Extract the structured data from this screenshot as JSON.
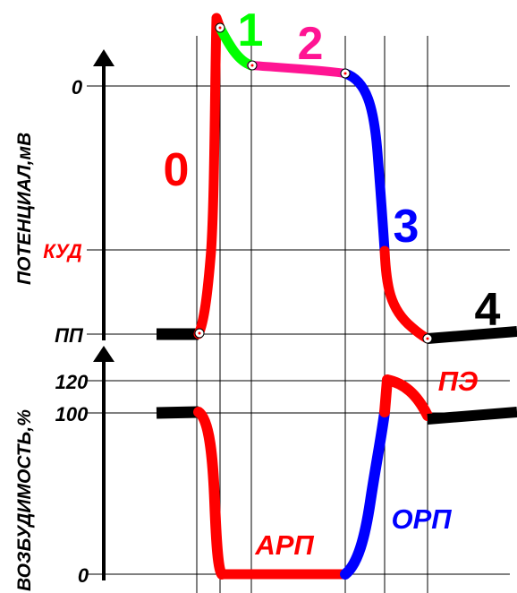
{
  "top_chart": {
    "ylabel": "ПОТЕНЦИАЛ,мВ",
    "ticks": {
      "zero": "0",
      "threshold": "КУД",
      "rest": "ПП"
    },
    "phases": {
      "p0": "0",
      "p1": "1",
      "p2": "2",
      "p3": "3",
      "p4": "4"
    }
  },
  "bottom_chart": {
    "ylabel": "ВОЗБУДИМОСТЬ,%",
    "ticks": {
      "t120": "120",
      "t100": "100",
      "t0": "0"
    },
    "labels": {
      "arp": "АРП",
      "orp": "ОРП",
      "pe": "ПЭ"
    }
  },
  "colors": {
    "phase0": "#ff0000",
    "phase1": "#00ff00",
    "phase2": "#ff1493",
    "phase3": "#0000ff",
    "phase4": "#000000",
    "label_red": "#ff0000",
    "label_blue": "#0000ff"
  }
}
